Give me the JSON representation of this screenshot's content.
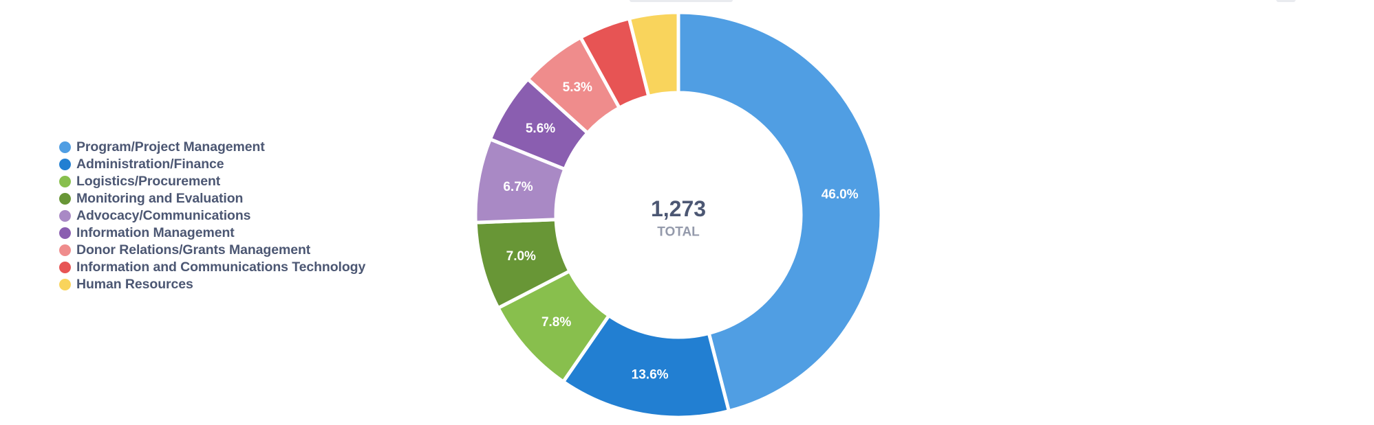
{
  "chart_data": {
    "type": "pie",
    "variant": "donut",
    "center": {
      "value": "1,273",
      "label": "TOTAL"
    },
    "legend_position": "left",
    "slices": [
      {
        "name": "Program/Project Management",
        "percent": 46.0,
        "label": "46.0%",
        "color": "#509ee3"
      },
      {
        "name": "Administration/Finance",
        "percent": 13.6,
        "label": "13.6%",
        "color": "#227fd2"
      },
      {
        "name": "Logistics/Procurement",
        "percent": 7.8,
        "label": "7.8%",
        "color": "#88bf4d"
      },
      {
        "name": "Monitoring and Evaluation",
        "percent": 7.0,
        "label": "7.0%",
        "color": "#689636"
      },
      {
        "name": "Advocacy/Communications",
        "percent": 6.7,
        "label": "6.7%",
        "color": "#a989c5"
      },
      {
        "name": "Information Management",
        "percent": 5.6,
        "label": "5.6%",
        "color": "#8a5eb0"
      },
      {
        "name": "Donor Relations/Grants Management",
        "percent": 5.3,
        "label": "5.3%",
        "color": "#ef8c8c"
      },
      {
        "name": "Information and Communications Technology",
        "percent": 4.1,
        "label": "",
        "color": "#e75454"
      },
      {
        "name": "Human Resources",
        "percent": 3.9,
        "label": "",
        "color": "#f9d45c"
      }
    ]
  }
}
